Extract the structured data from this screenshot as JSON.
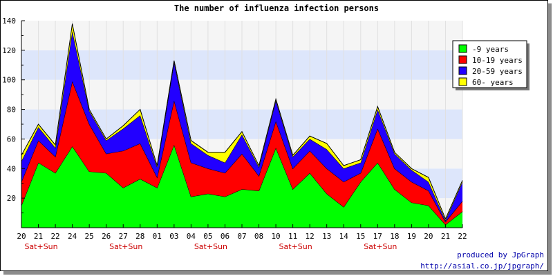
{
  "chart_data": {
    "type": "area",
    "stacked": true,
    "title": "The number of influenza infection persons",
    "categories": [
      "20",
      "21",
      "22",
      "24",
      "25",
      "26",
      "27",
      "28",
      "01",
      "03",
      "04",
      "05",
      "06",
      "07",
      "08",
      "10",
      "11",
      "12",
      "13",
      "14",
      "15",
      "17",
      "18",
      "19",
      "20",
      "21",
      "22"
    ],
    "sublabels": [
      {
        "index": 1,
        "text": "Sat+Sun"
      },
      {
        "index": 6,
        "text": "Sat+Sun"
      },
      {
        "index": 11,
        "text": "Sat+Sun"
      },
      {
        "index": 16,
        "text": "Sat+Sun"
      },
      {
        "index": 21,
        "text": "Sat+Sun"
      }
    ],
    "yticks": [
      20,
      40,
      60,
      80,
      100,
      120,
      140
    ],
    "ylim": [
      0,
      140
    ],
    "grid": true,
    "legend_position": "right",
    "series": [
      {
        "name": "-9 years",
        "color": "#00ff00",
        "values": [
          15,
          44,
          37,
          55,
          38,
          37,
          27,
          33,
          27,
          56,
          21,
          23,
          21,
          26,
          25,
          54,
          26,
          37,
          23,
          14,
          31,
          44,
          26,
          17,
          15,
          2,
          11
        ]
      },
      {
        "name": "10-19 years",
        "color": "#ff0000",
        "values": [
          16,
          15,
          11,
          44,
          32,
          13,
          25,
          24,
          7,
          30,
          23,
          17,
          16,
          24,
          10,
          18,
          14,
          15,
          17,
          17,
          6,
          23,
          14,
          14,
          10,
          2,
          7
        ]
      },
      {
        "name": "20-59 years",
        "color": "#2200ff",
        "values": [
          14,
          9,
          6,
          34,
          9,
          9,
          15,
          19,
          7,
          26,
          13,
          9,
          7,
          13,
          6,
          14,
          8,
          8,
          13,
          9,
          7,
          13,
          10,
          8,
          6,
          1,
          13
        ]
      },
      {
        "name": "60- years",
        "color": "#ffff00",
        "values": [
          4,
          2,
          2,
          5,
          1,
          1,
          2,
          4,
          1,
          1,
          2,
          2,
          7,
          2,
          1,
          1,
          1,
          2,
          4,
          2,
          2,
          2,
          1,
          1,
          3,
          1,
          1
        ]
      }
    ]
  },
  "credit": {
    "line1": "produced by JpGraph",
    "line2": "http://asial.co.jp/jpgraph/"
  }
}
